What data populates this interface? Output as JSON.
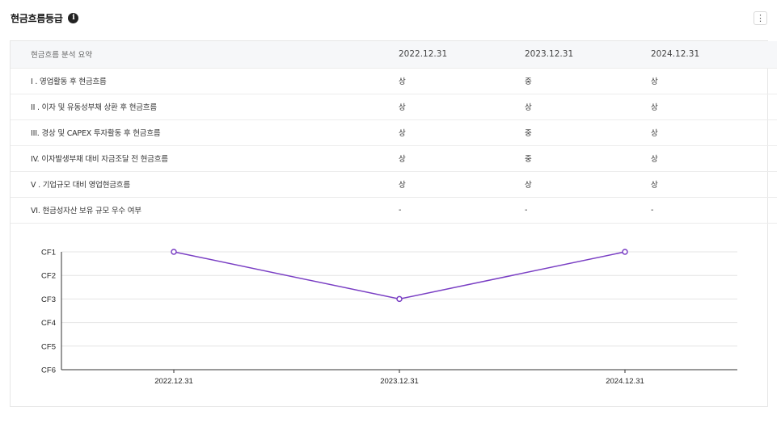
{
  "header": {
    "title": "현금흐름등급",
    "info_icon": "info-icon",
    "more_icon": "more-vertical-icon"
  },
  "table": {
    "columns": [
      "현금흐름 분석 요약",
      "2022.12.31",
      "2023.12.31",
      "2024.12.31"
    ],
    "rows": [
      {
        "label": "I . 영업활동 후 현금흐름",
        "values": [
          "상",
          "중",
          "상"
        ]
      },
      {
        "label": "II . 이자 및 유동성부채 상환 후 현금흐름",
        "values": [
          "상",
          "상",
          "상"
        ]
      },
      {
        "label": "III. 경상 및 CAPEX 투자활동 후 현금흐름",
        "values": [
          "상",
          "중",
          "상"
        ]
      },
      {
        "label": "IV. 이자발생부채 대비 자금조달 전 현금흐름",
        "values": [
          "상",
          "중",
          "상"
        ]
      },
      {
        "label": "V . 기업규모 대비 영업현금흐름",
        "values": [
          "상",
          "상",
          "상"
        ]
      },
      {
        "label": "VI. 현금성자산 보유 규모 우수 여부",
        "values": [
          "-",
          "-",
          "-"
        ]
      }
    ]
  },
  "chart_data": {
    "type": "line",
    "categories": [
      "2022.12.31",
      "2023.12.31",
      "2024.12.31"
    ],
    "y_ticks": [
      "CF1",
      "CF2",
      "CF3",
      "CF4",
      "CF5",
      "CF6"
    ],
    "series": [
      {
        "values": [
          "CF1",
          "CF3",
          "CF1"
        ],
        "color": "#7a3fc4"
      }
    ],
    "grid": true,
    "title": "",
    "xlabel": "",
    "ylabel": ""
  }
}
